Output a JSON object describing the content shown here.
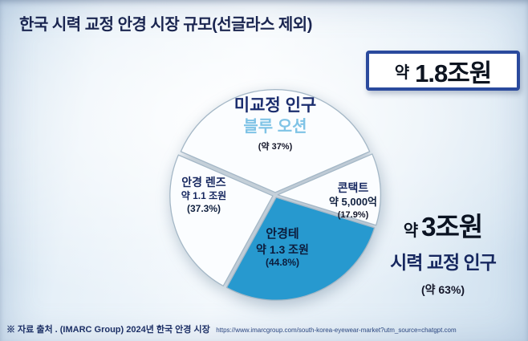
{
  "title": "한국 시력 교정 안경 시장 규모(선글라스 제외)",
  "total_box": {
    "prefix": "약",
    "value": "1.8조원"
  },
  "right_note": {
    "prefix": "약",
    "value": "3조원",
    "label": "시력 교정 인구",
    "share": "(약 63%)"
  },
  "source": {
    "text": "※ 자료 출처 . (IMARC Group) 2024년 한국 안경 시장",
    "url": "https://www.imarcgroup.com/south-korea-eyewear-market?utm_source=chatgpt.com"
  },
  "colors": {
    "accent_blue": "#2799cf",
    "box_border": "#2a4a9d",
    "navy_text": "#16275f",
    "sky_blue": "#7fc3e6",
    "slice_white": "#fbfdff"
  },
  "chart_data": {
    "type": "pie",
    "title": "한국 시력 교정 안경 시장 규모(선글라스 제외)",
    "total_market_label": "약 1.8조원",
    "corrected_population_note": {
      "market_size": "약 3조원",
      "label": "시력 교정 인구",
      "share_text": "(약 63%)"
    },
    "slices": [
      {
        "id": "uncorrected",
        "label": "미교정 인구",
        "sublabel": "블루 오션",
        "share_text": "(약 37%)",
        "percent": 37,
        "angle_deg": 133.2,
        "color": "#fbfdff"
      },
      {
        "id": "contacts",
        "label": "콘택트",
        "value_text": "약 5,000억",
        "share_text": "(17.9%)",
        "percent": 17.9,
        "angle_deg": 40.6,
        "color": "#fbfdff"
      },
      {
        "id": "frames",
        "label": "안경테",
        "value_text": "약 1.3 조원",
        "share_text": "(44.8%)",
        "percent": 44.8,
        "angle_deg": 101.6,
        "color": "#2799cf"
      },
      {
        "id": "lenses",
        "label": "안경 렌즈",
        "value_text": "약 1.1 조원",
        "share_text": "(37.3%)",
        "percent": 37.3,
        "angle_deg": 84.6,
        "color": "#fbfdff"
      }
    ]
  }
}
